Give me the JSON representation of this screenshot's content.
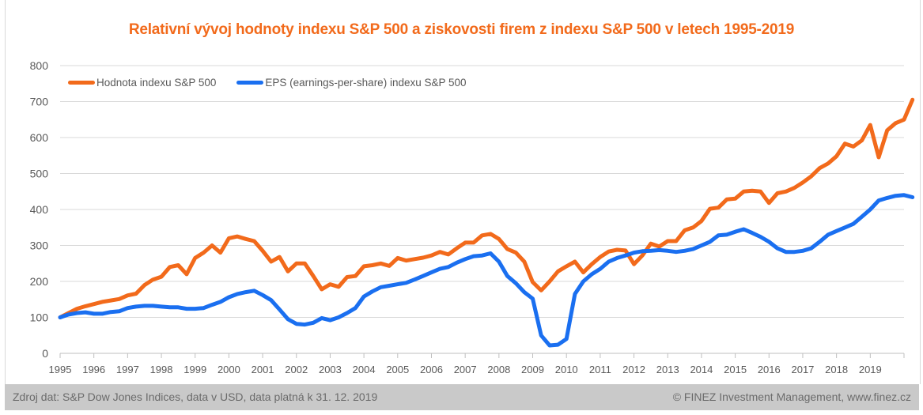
{
  "title": "Relativní vývoj hodnoty indexu S&P 500 a ziskovosti firem z indexu S&P 500 v letech 1995-2019",
  "footer": {
    "source": "Zdroj dat: S&P Dow Jones Indices, data v USD, data platná k 31. 12. 2019",
    "copyright": "© FINEZ Investment Management, www.finez.cz"
  },
  "colors": {
    "title": "#f26a1b",
    "sp500": "#f26a1b",
    "eps": "#1a6ff0",
    "grid": "#d9d9d9",
    "footer_bg": "#c9c9c9"
  },
  "chart_data": {
    "type": "line",
    "title": "Relativní vývoj hodnoty indexu S&P 500 a ziskovosti firem z indexu S&P 500 v letech 1995-2019",
    "xlabel": "",
    "ylabel": "",
    "ylim": [
      0,
      800
    ],
    "yticks": [
      0,
      100,
      200,
      300,
      400,
      500,
      600,
      700,
      800
    ],
    "xlim": [
      1995,
      2020
    ],
    "xticks": [
      "1995",
      "1996",
      "1997",
      "1998",
      "1999",
      "2000",
      "2001",
      "2002",
      "2003",
      "2004",
      "2005",
      "2006",
      "2007",
      "2008",
      "2009",
      "2010",
      "2011",
      "2012",
      "2013",
      "2014",
      "2015",
      "2016",
      "2017",
      "2018",
      "2019"
    ],
    "grid": "horizontal",
    "legend_position": "top-left",
    "x_step": 0.25,
    "x_start": 1995,
    "series": [
      {
        "name": "Hodnota indexu S&P 500",
        "color": "#f26a1b",
        "values": [
          100,
          112,
          124,
          131,
          137,
          143,
          147,
          151,
          161,
          166,
          190,
          205,
          213,
          240,
          245,
          220,
          265,
          280,
          300,
          280,
          320,
          325,
          318,
          312,
          285,
          255,
          268,
          228,
          250,
          250,
          215,
          178,
          192,
          185,
          212,
          215,
          242,
          245,
          250,
          243,
          265,
          258,
          262,
          266,
          272,
          282,
          275,
          292,
          308,
          308,
          328,
          332,
          318,
          290,
          280,
          255,
          198,
          175,
          200,
          228,
          242,
          255,
          225,
          248,
          268,
          283,
          288,
          286,
          248,
          272,
          305,
          297,
          312,
          312,
          342,
          350,
          368,
          402,
          405,
          428,
          430,
          450,
          452,
          450,
          418,
          445,
          450,
          460,
          475,
          492,
          515,
          528,
          548,
          583,
          575,
          592,
          635,
          545,
          620,
          640,
          650,
          705
        ]
      },
      {
        "name": "EPS (earnings-per-share) indexu S&P 500",
        "color": "#1a6ff0",
        "values": [
          100,
          108,
          112,
          114,
          110,
          110,
          115,
          117,
          126,
          130,
          132,
          132,
          130,
          128,
          128,
          124,
          124,
          126,
          135,
          143,
          156,
          165,
          170,
          174,
          162,
          148,
          122,
          95,
          82,
          80,
          85,
          98,
          92,
          100,
          112,
          126,
          158,
          172,
          184,
          188,
          192,
          196,
          205,
          215,
          225,
          235,
          240,
          252,
          262,
          270,
          272,
          278,
          255,
          215,
          195,
          170,
          152,
          50,
          22,
          24,
          40,
          165,
          200,
          220,
          235,
          255,
          265,
          272,
          280,
          284,
          285,
          287,
          285,
          282,
          285,
          290,
          300,
          310,
          328,
          330,
          338,
          345,
          335,
          324,
          310,
          292,
          282,
          282,
          285,
          292,
          310,
          330,
          340,
          350,
          360,
          380,
          400,
          425,
          432,
          438,
          440,
          434
        ]
      }
    ]
  }
}
